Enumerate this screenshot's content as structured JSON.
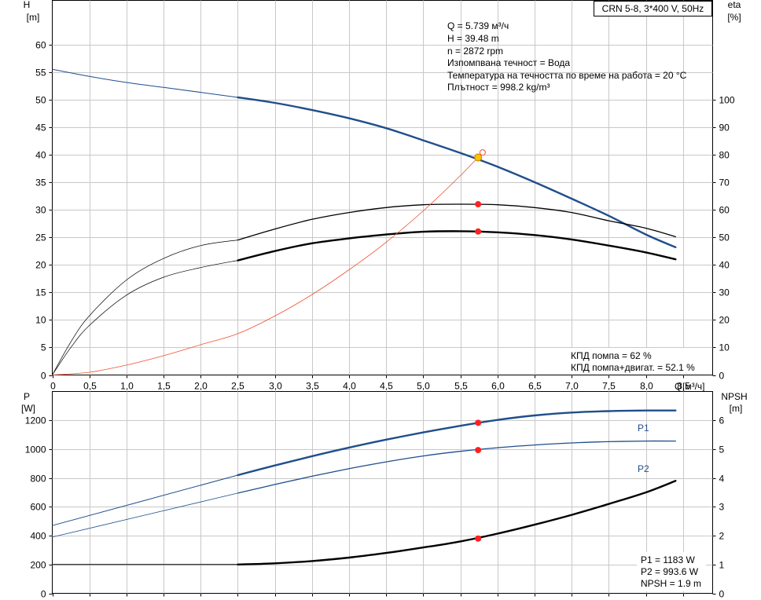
{
  "title_box": "CRN 5-8, 3*400 V, 50Hz",
  "info_lines": [
    "Q = 5.739 м³/ч",
    "H = 39.48 m",
    "n = 2872 rpm",
    "Изпомпвана течност = Вода",
    "Температура на течността по време на работа = 20 °C",
    "Плътност = 998.2 kg/m³"
  ],
  "efficiency_lines": [
    "КПД помпа = 62 %",
    "КПД помпа+двигат. = 52.1 %"
  ],
  "power_lines": [
    "P1 = 1183 W",
    "P2 = 993.6 W",
    "NPSH = 1.9 m"
  ],
  "colors": {
    "blue": "#1f4e8c",
    "black": "#000000",
    "red": "#ff2020",
    "thin_red": "#f05030",
    "duty_point_fill": "#ffc000",
    "grid": "#c8c8c8"
  },
  "chart_data": [
    {
      "type": "line",
      "name": "top",
      "ylabel_left": "H",
      "ylabel_left_unit": "[m]",
      "ylabel_right": "eta",
      "ylabel_right_unit": "[%]",
      "xlabel": "Q",
      "xlabel_unit": "[м³/ч]",
      "xlim": [
        0,
        8.9
      ],
      "ylim_left": [
        0,
        68
      ],
      "ylim_right": [
        0,
        136
      ],
      "x_ticks": [
        "0",
        "0,5",
        "1,0",
        "1,5",
        "2,0",
        "2,5",
        "3,0",
        "3,5",
        "4,0",
        "4,5",
        "5,0",
        "5,5",
        "6,0",
        "6,5",
        "7,0",
        "7,5",
        "8,0",
        "8,5"
      ],
      "left_ticks": [
        0,
        5,
        10,
        15,
        20,
        25,
        30,
        35,
        40,
        45,
        50,
        55,
        60
      ],
      "right_ticks": [
        0,
        10,
        20,
        30,
        40,
        50,
        60,
        70,
        80,
        90,
        100
      ],
      "grid": true,
      "series": [
        {
          "axis": "left",
          "style": "head-thin",
          "color": "blue",
          "x": [
            0,
            0.5,
            1.0,
            1.5,
            2.0,
            2.5
          ],
          "y": [
            55.5,
            54.2,
            53.1,
            52.2,
            51.3,
            50.4
          ]
        },
        {
          "axis": "left",
          "style": "head-thick",
          "color": "blue",
          "x": [
            2.5,
            3.0,
            3.5,
            4.0,
            4.5,
            5.0,
            5.5,
            6.0,
            6.5,
            7.0,
            7.5,
            8.0,
            8.4
          ],
          "y": [
            50.4,
            49.4,
            48.1,
            46.6,
            44.8,
            42.6,
            40.3,
            37.8,
            35.0,
            32.0,
            28.9,
            25.5,
            23.2
          ]
        },
        {
          "axis": "right",
          "style": "eta-pump-thin",
          "color": "black",
          "x": [
            0,
            0.25,
            0.5,
            1.0,
            1.5,
            2.0,
            2.5
          ],
          "y": [
            0,
            12,
            21.5,
            34.5,
            42.3,
            47.0,
            49.0
          ]
        },
        {
          "axis": "right",
          "style": "eta-pump-line",
          "color": "black",
          "x": [
            2.5,
            3.0,
            3.5,
            4.0,
            4.5,
            5.0,
            5.5,
            6.0,
            6.5,
            7.0,
            7.5,
            8.0,
            8.4
          ],
          "y": [
            49.0,
            53.0,
            56.5,
            59.0,
            60.8,
            61.8,
            62.0,
            61.8,
            60.8,
            59.0,
            56.0,
            53.3,
            50.2
          ]
        },
        {
          "axis": "right",
          "style": "eta-total-thin",
          "color": "black",
          "x": [
            0,
            0.25,
            0.5,
            1.0,
            1.5,
            2.0,
            2.5
          ],
          "y": [
            0,
            10,
            18,
            29,
            35.5,
            39.0,
            41.6
          ]
        },
        {
          "axis": "right",
          "style": "eta-total-thick",
          "color": "black",
          "x": [
            2.5,
            3.0,
            3.5,
            4.0,
            4.5,
            5.0,
            5.5,
            6.0,
            6.5,
            7.0,
            7.5,
            8.0,
            8.4
          ],
          "y": [
            41.6,
            45.0,
            47.8,
            49.6,
            51.0,
            52.0,
            52.2,
            51.8,
            50.8,
            49.2,
            47.0,
            44.5,
            42.0
          ]
        },
        {
          "axis": "left",
          "style": "system",
          "color": "thin_red",
          "x": [
            0,
            0.5,
            1.0,
            1.5,
            2.0,
            2.5,
            3.0,
            3.5,
            4.0,
            4.5,
            5.0,
            5.5,
            5.8
          ],
          "y": [
            0,
            0.5,
            1.8,
            3.5,
            5.5,
            7.5,
            10.7,
            14.6,
            19.1,
            24.1,
            29.8,
            36.2,
            40.4
          ]
        }
      ],
      "points": [
        {
          "axis": "left",
          "x": 5.739,
          "y": 39.48,
          "style": "duty"
        },
        {
          "axis": "left",
          "x": 5.8,
          "y": 40.4,
          "style": "open"
        },
        {
          "axis": "right",
          "x": 5.739,
          "y": 62,
          "style": "red"
        },
        {
          "axis": "right",
          "x": 5.739,
          "y": 52.1,
          "style": "red"
        }
      ]
    },
    {
      "type": "line",
      "name": "bottom",
      "ylabel_left": "P",
      "ylabel_left_unit": "[W]",
      "ylabel_right": "NPSH",
      "ylabel_right_unit": "[m]",
      "xlim": [
        0,
        8.9
      ],
      "ylim_left": [
        0,
        1400
      ],
      "ylim_right": [
        0,
        7
      ],
      "left_ticks": [
        0,
        200,
        400,
        600,
        800,
        1000,
        1200
      ],
      "right_ticks": [
        0,
        1,
        2,
        3,
        4,
        5,
        6
      ],
      "grid": true,
      "series": [
        {
          "name": "P1",
          "axis": "left",
          "style": "p1-thin",
          "color": "blue",
          "x": [
            0,
            2.5
          ],
          "y": [
            470,
            820
          ]
        },
        {
          "name": "P1",
          "axis": "left",
          "style": "p1-thick",
          "color": "blue",
          "x": [
            2.5,
            3.0,
            3.5,
            4.0,
            4.5,
            5.0,
            5.5,
            6.0,
            6.5,
            7.0,
            7.5,
            8.0,
            8.4
          ],
          "y": [
            820,
            887,
            951,
            1011,
            1066,
            1116,
            1162,
            1203,
            1234,
            1254,
            1264,
            1268,
            1268
          ]
        },
        {
          "name": "P2",
          "axis": "left",
          "style": "p2-thin",
          "color": "blue",
          "x": [
            0,
            2.5
          ],
          "y": [
            390,
            695
          ]
        },
        {
          "name": "P2",
          "axis": "left",
          "style": "p2-line",
          "color": "blue",
          "x": [
            2.5,
            3.0,
            3.5,
            4.0,
            4.5,
            5.0,
            5.5,
            6.0,
            6.5,
            7.0,
            7.5,
            8.0,
            8.4
          ],
          "y": [
            695,
            755,
            812,
            865,
            912,
            953,
            985,
            1010,
            1029,
            1043,
            1052,
            1056,
            1056
          ]
        },
        {
          "axis": "right",
          "style": "npsh-thin",
          "color": "black",
          "x": [
            0,
            2.5
          ],
          "y": [
            1.0,
            1.0
          ]
        },
        {
          "axis": "right",
          "style": "npsh-thick",
          "color": "black",
          "x": [
            2.5,
            3.0,
            3.5,
            4.0,
            4.5,
            5.0,
            5.5,
            6.0,
            6.5,
            7.0,
            7.5,
            8.0,
            8.4
          ],
          "y": [
            1.0,
            1.04,
            1.12,
            1.24,
            1.4,
            1.59,
            1.8,
            2.07,
            2.38,
            2.72,
            3.1,
            3.5,
            3.9
          ]
        }
      ],
      "points": [
        {
          "axis": "left",
          "x": 5.739,
          "y": 1183,
          "style": "red"
        },
        {
          "axis": "left",
          "x": 5.739,
          "y": 993.6,
          "style": "red"
        },
        {
          "axis": "right",
          "x": 5.739,
          "y": 1.9,
          "style": "red"
        }
      ],
      "series_labels": [
        "P1",
        "P2"
      ]
    }
  ]
}
